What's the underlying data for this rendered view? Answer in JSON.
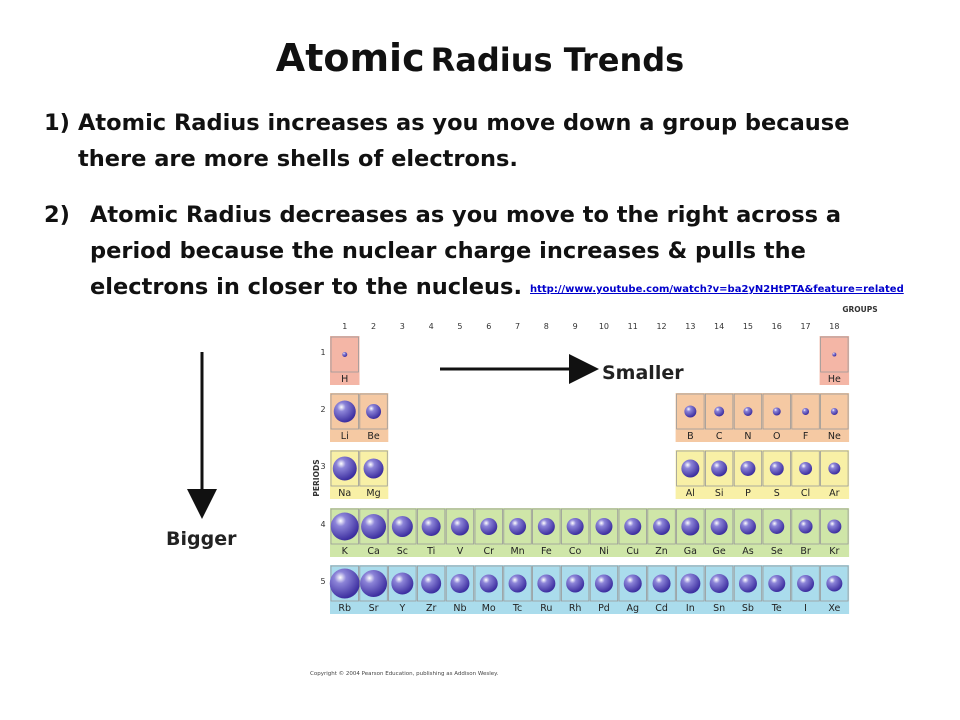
{
  "title": {
    "word1": "Atomic",
    "word2": "Radius Trends"
  },
  "points": [
    {
      "num": "1)",
      "text": "Atomic Radius increases as you move down a group because there are more shells of electrons."
    },
    {
      "num": "2)",
      "text": "Atomic Radius decreases as you move to the right across a period because the nuclear charge increases & pulls the electrons in closer to the nucleus."
    }
  ],
  "link": "http://www.youtube.com/watch?v=ba2yN2HtPTA&feature=related",
  "labels": {
    "smaller": "Smaller",
    "bigger": "Bigger"
  },
  "table": {
    "groups_label": "GROUPS",
    "periods_label": "PERIODS",
    "group_numbers": [
      "1",
      "2",
      "3",
      "4",
      "5",
      "6",
      "7",
      "8",
      "9",
      "10",
      "11",
      "12",
      "13",
      "14",
      "15",
      "16",
      "17",
      "18"
    ],
    "period_numbers": [
      "1",
      "2",
      "3",
      "4",
      "5"
    ],
    "colors": {
      "period1": "#f4b6a6",
      "period2": "#f5c9a3",
      "period3": "#f8f0a6",
      "period4": "#cfe6a8",
      "period5": "#aadcec",
      "atom": "#3d2fa0",
      "cell_border": "#9a9a9a"
    },
    "rows": [
      {
        "period": 1,
        "elements": [
          {
            "sym": "H",
            "group": 1,
            "r": 2.5
          },
          {
            "sym": "He",
            "group": 18,
            "r": 2
          }
        ]
      },
      {
        "period": 2,
        "elements": [
          {
            "sym": "Li",
            "group": 1,
            "r": 11
          },
          {
            "sym": "Be",
            "group": 2,
            "r": 7.5
          },
          {
            "sym": "B",
            "group": 13,
            "r": 6
          },
          {
            "sym": "C",
            "group": 14,
            "r": 5
          },
          {
            "sym": "N",
            "group": 15,
            "r": 4.5
          },
          {
            "sym": "O",
            "group": 16,
            "r": 4
          },
          {
            "sym": "F",
            "group": 17,
            "r": 3.5
          },
          {
            "sym": "Ne",
            "group": 18,
            "r": 3.5
          }
        ]
      },
      {
        "period": 3,
        "elements": [
          {
            "sym": "Na",
            "group": 1,
            "r": 12
          },
          {
            "sym": "Mg",
            "group": 2,
            "r": 10
          },
          {
            "sym": "Al",
            "group": 13,
            "r": 9
          },
          {
            "sym": "Si",
            "group": 14,
            "r": 8
          },
          {
            "sym": "P",
            "group": 15,
            "r": 7.5
          },
          {
            "sym": "S",
            "group": 16,
            "r": 7
          },
          {
            "sym": "Cl",
            "group": 17,
            "r": 6.5
          },
          {
            "sym": "Ar",
            "group": 18,
            "r": 6
          }
        ]
      },
      {
        "period": 4,
        "elements": [
          {
            "sym": "K",
            "group": 1,
            "r": 14
          },
          {
            "sym": "Ca",
            "group": 2,
            "r": 12.5
          },
          {
            "sym": "Sc",
            "group": 3,
            "r": 10.5
          },
          {
            "sym": "Ti",
            "group": 4,
            "r": 9.5
          },
          {
            "sym": "V",
            "group": 5,
            "r": 9
          },
          {
            "sym": "Cr",
            "group": 6,
            "r": 8.5
          },
          {
            "sym": "Mn",
            "group": 7,
            "r": 8.5
          },
          {
            "sym": "Fe",
            "group": 8,
            "r": 8.5
          },
          {
            "sym": "Co",
            "group": 9,
            "r": 8.5
          },
          {
            "sym": "Ni",
            "group": 10,
            "r": 8.5
          },
          {
            "sym": "Cu",
            "group": 11,
            "r": 8.5
          },
          {
            "sym": "Zn",
            "group": 12,
            "r": 8.5
          },
          {
            "sym": "Ga",
            "group": 13,
            "r": 9
          },
          {
            "sym": "Ge",
            "group": 14,
            "r": 8.5
          },
          {
            "sym": "As",
            "group": 15,
            "r": 8
          },
          {
            "sym": "Se",
            "group": 16,
            "r": 7.5
          },
          {
            "sym": "Br",
            "group": 17,
            "r": 7
          },
          {
            "sym": "Kr",
            "group": 18,
            "r": 7
          }
        ]
      },
      {
        "period": 5,
        "elements": [
          {
            "sym": "Rb",
            "group": 1,
            "r": 15
          },
          {
            "sym": "Sr",
            "group": 2,
            "r": 13.5
          },
          {
            "sym": "Y",
            "group": 3,
            "r": 11
          },
          {
            "sym": "Zr",
            "group": 4,
            "r": 10
          },
          {
            "sym": "Nb",
            "group": 5,
            "r": 9.5
          },
          {
            "sym": "Mo",
            "group": 6,
            "r": 9
          },
          {
            "sym": "Tc",
            "group": 7,
            "r": 9
          },
          {
            "sym": "Ru",
            "group": 8,
            "r": 9
          },
          {
            "sym": "Rh",
            "group": 9,
            "r": 9
          },
          {
            "sym": "Pd",
            "group": 10,
            "r": 9
          },
          {
            "sym": "Ag",
            "group": 11,
            "r": 9
          },
          {
            "sym": "Cd",
            "group": 12,
            "r": 9
          },
          {
            "sym": "In",
            "group": 13,
            "r": 10
          },
          {
            "sym": "Sn",
            "group": 14,
            "r": 9.5
          },
          {
            "sym": "Sb",
            "group": 15,
            "r": 9
          },
          {
            "sym": "Te",
            "group": 16,
            "r": 8.5
          },
          {
            "sym": "I",
            "group": 17,
            "r": 8.5
          },
          {
            "sym": "Xe",
            "group": 18,
            "r": 8
          }
        ]
      }
    ],
    "copyright": "Copyright © 2004 Pearson Education, publishing as Addison Wesley."
  }
}
